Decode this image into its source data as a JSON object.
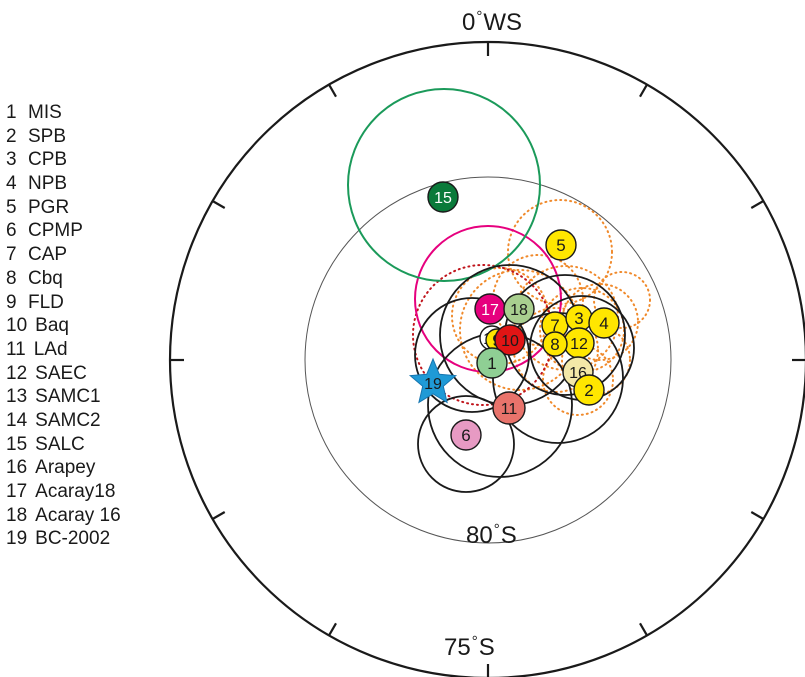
{
  "labels": {
    "top": {
      "value": "0",
      "suffix": "WS"
    },
    "inner_bottom": {
      "value": "80",
      "suffix": "S"
    },
    "outer_bottom": {
      "value": "75",
      "suffix": "S"
    },
    "degree": "°"
  },
  "legend": [
    {
      "num": "1",
      "name": "MIS"
    },
    {
      "num": "2",
      "name": "SPB"
    },
    {
      "num": "3",
      "name": "CPB"
    },
    {
      "num": "4",
      "name": "NPB"
    },
    {
      "num": "5",
      "name": "PGR"
    },
    {
      "num": "6",
      "name": "CPMP"
    },
    {
      "num": "7",
      "name": "CAP"
    },
    {
      "num": "8",
      "name": "Cbq"
    },
    {
      "num": "9",
      "name": "FLD"
    },
    {
      "num": "10",
      "name": "Baq"
    },
    {
      "num": "11",
      "name": "LAd"
    },
    {
      "num": "12",
      "name": "SAEC"
    },
    {
      "num": "13",
      "name": "SAMC1"
    },
    {
      "num": "14",
      "name": "SAMC2"
    },
    {
      "num": "15",
      "name": "SALC"
    },
    {
      "num": "16",
      "name": "Arapey"
    },
    {
      "num": "17",
      "name": "Acaray18"
    },
    {
      "num": "18",
      "name": "Acaray 16"
    },
    {
      "num": "19",
      "name": "BC-2002"
    }
  ],
  "poles": [
    {
      "label": "15",
      "fill": "#0a7a3a",
      "text_color": "#ffffff"
    },
    {
      "label": "5",
      "fill": "#ffe600",
      "text_color": "#1a1a1a"
    },
    {
      "label": "17",
      "fill": "#e6007e",
      "text_color": "#ffffff"
    },
    {
      "label": "18",
      "fill": "#a9cf8f",
      "text_color": "#1a1a1a"
    },
    {
      "label": "7",
      "fill": "#ffe600",
      "text_color": "#1a1a1a"
    },
    {
      "label": "3",
      "fill": "#ffe600",
      "text_color": "#1a1a1a"
    },
    {
      "label": "4",
      "fill": "#ffe600",
      "text_color": "#1a1a1a"
    },
    {
      "label": "12",
      "fill": "#ffe600",
      "text_color": "#1a1a1a"
    },
    {
      "label": "8",
      "fill": "#ffe600",
      "text_color": "#1a1a1a"
    },
    {
      "label": "14",
      "fill": "#ffffff",
      "text_color": "#1a1a1a"
    },
    {
      "label": "9",
      "fill": "#ffe600",
      "text_color": "#1a1a1a"
    },
    {
      "label": "10",
      "fill": "#e01515",
      "text_color": "#1a1a1a"
    },
    {
      "label": "1",
      "fill": "#8fcf94",
      "text_color": "#1a1a1a"
    },
    {
      "label": "16",
      "fill": "#f3e8a8",
      "text_color": "#1a1a1a"
    },
    {
      "label": "2",
      "fill": "#ffe600",
      "text_color": "#1a1a1a"
    },
    {
      "label": "11",
      "fill": "#e8736b",
      "text_color": "#1a1a1a"
    },
    {
      "label": "6",
      "fill": "#e79ac3",
      "text_color": "#1a1a1a"
    },
    {
      "label": "19",
      "fill": "#1f9ad6",
      "text_color": "#1a1a1a",
      "marker": "star"
    }
  ],
  "colors": {
    "frame": "#1a1a1a",
    "inner_circle": "#555555",
    "salc_confidence": "#1b9a5a",
    "acaray_confidence": "#e6007e",
    "acaray_dotted": "#c0151c",
    "dotted_confidence": "#f08a2c",
    "confidence": "#1a1a1a"
  }
}
